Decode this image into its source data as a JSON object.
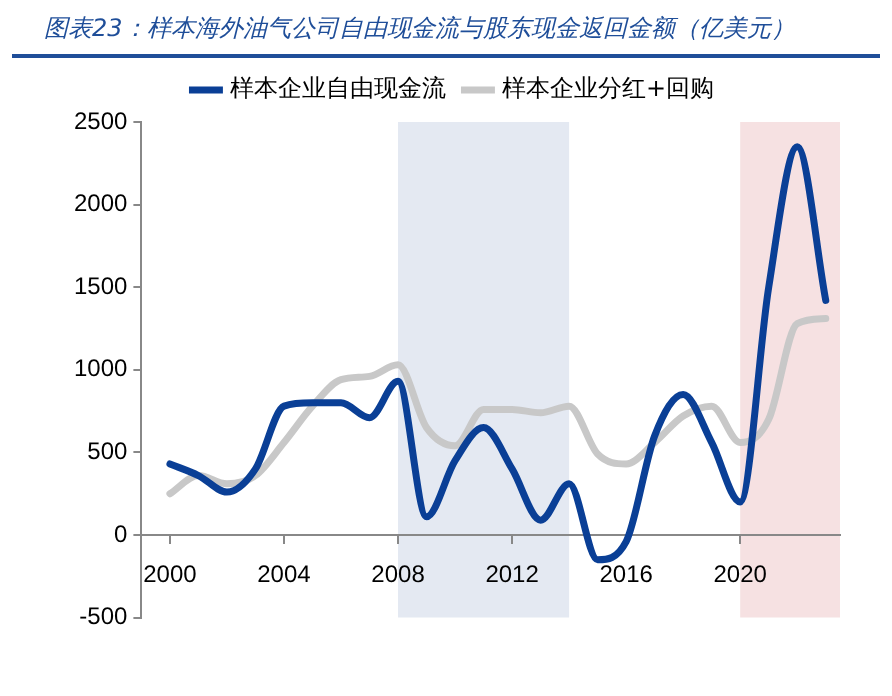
{
  "chart_data": {
    "type": "line",
    "title": "图表23：样本海外油气公司自由现金流与股东现金返回金额（亿美元）",
    "x": [
      2000,
      2001,
      2002,
      2003,
      2004,
      2005,
      2006,
      2007,
      2008,
      2009,
      2010,
      2011,
      2012,
      2013,
      2014,
      2015,
      2016,
      2017,
      2018,
      2019,
      2020,
      2021,
      2022,
      2023
    ],
    "series": [
      {
        "name": "样本企业自由现金流",
        "color": "#0a3f96",
        "values": [
          430,
          360,
          260,
          400,
          780,
          800,
          800,
          710,
          930,
          110,
          450,
          650,
          400,
          90,
          310,
          -150,
          -40,
          600,
          850,
          560,
          200,
          1500,
          2350,
          1420
        ]
      },
      {
        "name": "样本企业分红+回购",
        "color": "#c8c8c8",
        "values": [
          250,
          360,
          310,
          360,
          560,
          780,
          940,
          960,
          1030,
          650,
          540,
          760,
          760,
          740,
          780,
          490,
          430,
          560,
          720,
          780,
          560,
          700,
          1280,
          1310
        ]
      }
    ],
    "xlim": [
      1999,
      2023.5
    ],
    "xticks": [
      2000,
      2004,
      2008,
      2012,
      2016,
      2020
    ],
    "ylim": [
      -500,
      2500
    ],
    "yticks": [
      -500,
      0,
      500,
      1000,
      1500,
      2000,
      2500
    ],
    "bands": [
      {
        "axis": "x",
        "from": 2008,
        "to": 2014,
        "color": "#e4e9f2"
      },
      {
        "axis": "x",
        "from": 2020,
        "to": 2023.5,
        "color": "#f6e1e2"
      }
    ],
    "grid": false,
    "legend": "top",
    "marker": "none",
    "line_style": "solid"
  }
}
